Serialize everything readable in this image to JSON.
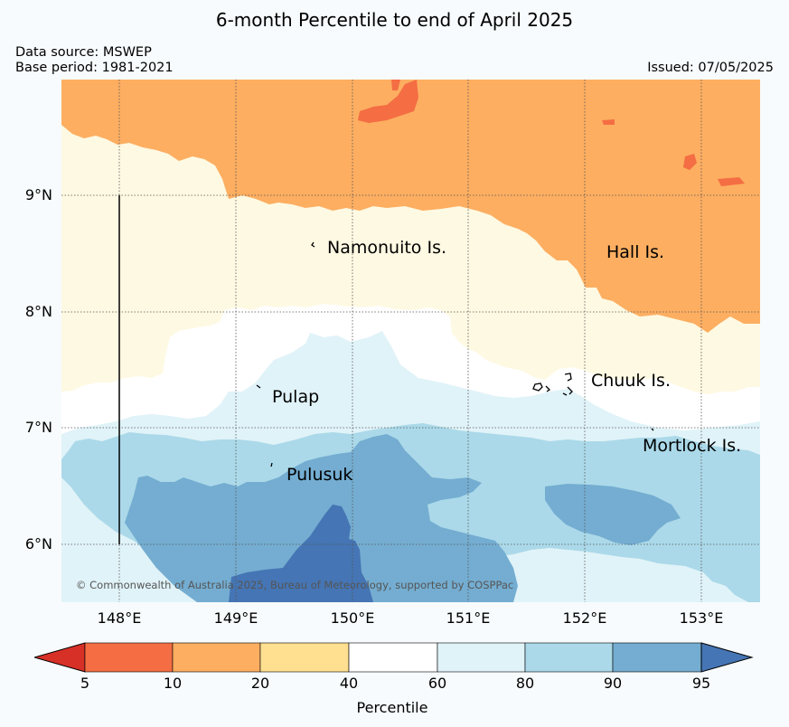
{
  "title": "6-month Percentile to end of April 2025",
  "data_source": "Data source: MSWEP",
  "base_period": "Base period: 1981-2021",
  "issued": "Issued: 07/05/2025",
  "copyright": "© Commonwealth of Australia 2025, Bureau of Meteorology, supported by COSPPac",
  "map": {
    "longitude_range": [
      147.5,
      153.5
    ],
    "latitude_range": [
      5.5,
      10.0
    ],
    "x_ticks": [
      "148°E",
      "149°E",
      "150°E",
      "151°E",
      "152°E",
      "153°E"
    ],
    "y_ticks": [
      "9°N",
      "8°N",
      "7°N",
      "6°N"
    ],
    "places": [
      {
        "name": "Namonuito Is.",
        "lon": 149.73,
        "lat": 8.55
      },
      {
        "name": "Hall Is.",
        "lon": 152.19,
        "lat": 8.51
      },
      {
        "name": "Pulap",
        "lon": 149.32,
        "lat": 7.25
      },
      {
        "name": "Chuuk Is.",
        "lon": 152.05,
        "lat": 7.37
      },
      {
        "name": "Mortlock Is.",
        "lon": 152.49,
        "lat": 6.82
      },
      {
        "name": "Pulusuk",
        "lon": 149.44,
        "lat": 6.57
      }
    ]
  },
  "colorbar": {
    "title": "Percentile",
    "labels": [
      "5",
      "10",
      "20",
      "40",
      "60",
      "80",
      "90",
      "95"
    ],
    "colors": {
      "below_5": "#d73027",
      "5-10": "#f46d43",
      "10-20": "#fdae61",
      "20-40": "#fee090",
      "40-60": "#ffffff",
      "60-80": "#e0f3f8",
      "80-90": "#abd9e9",
      "90-95": "#74add1",
      "above_95": "#4575b4"
    }
  }
}
